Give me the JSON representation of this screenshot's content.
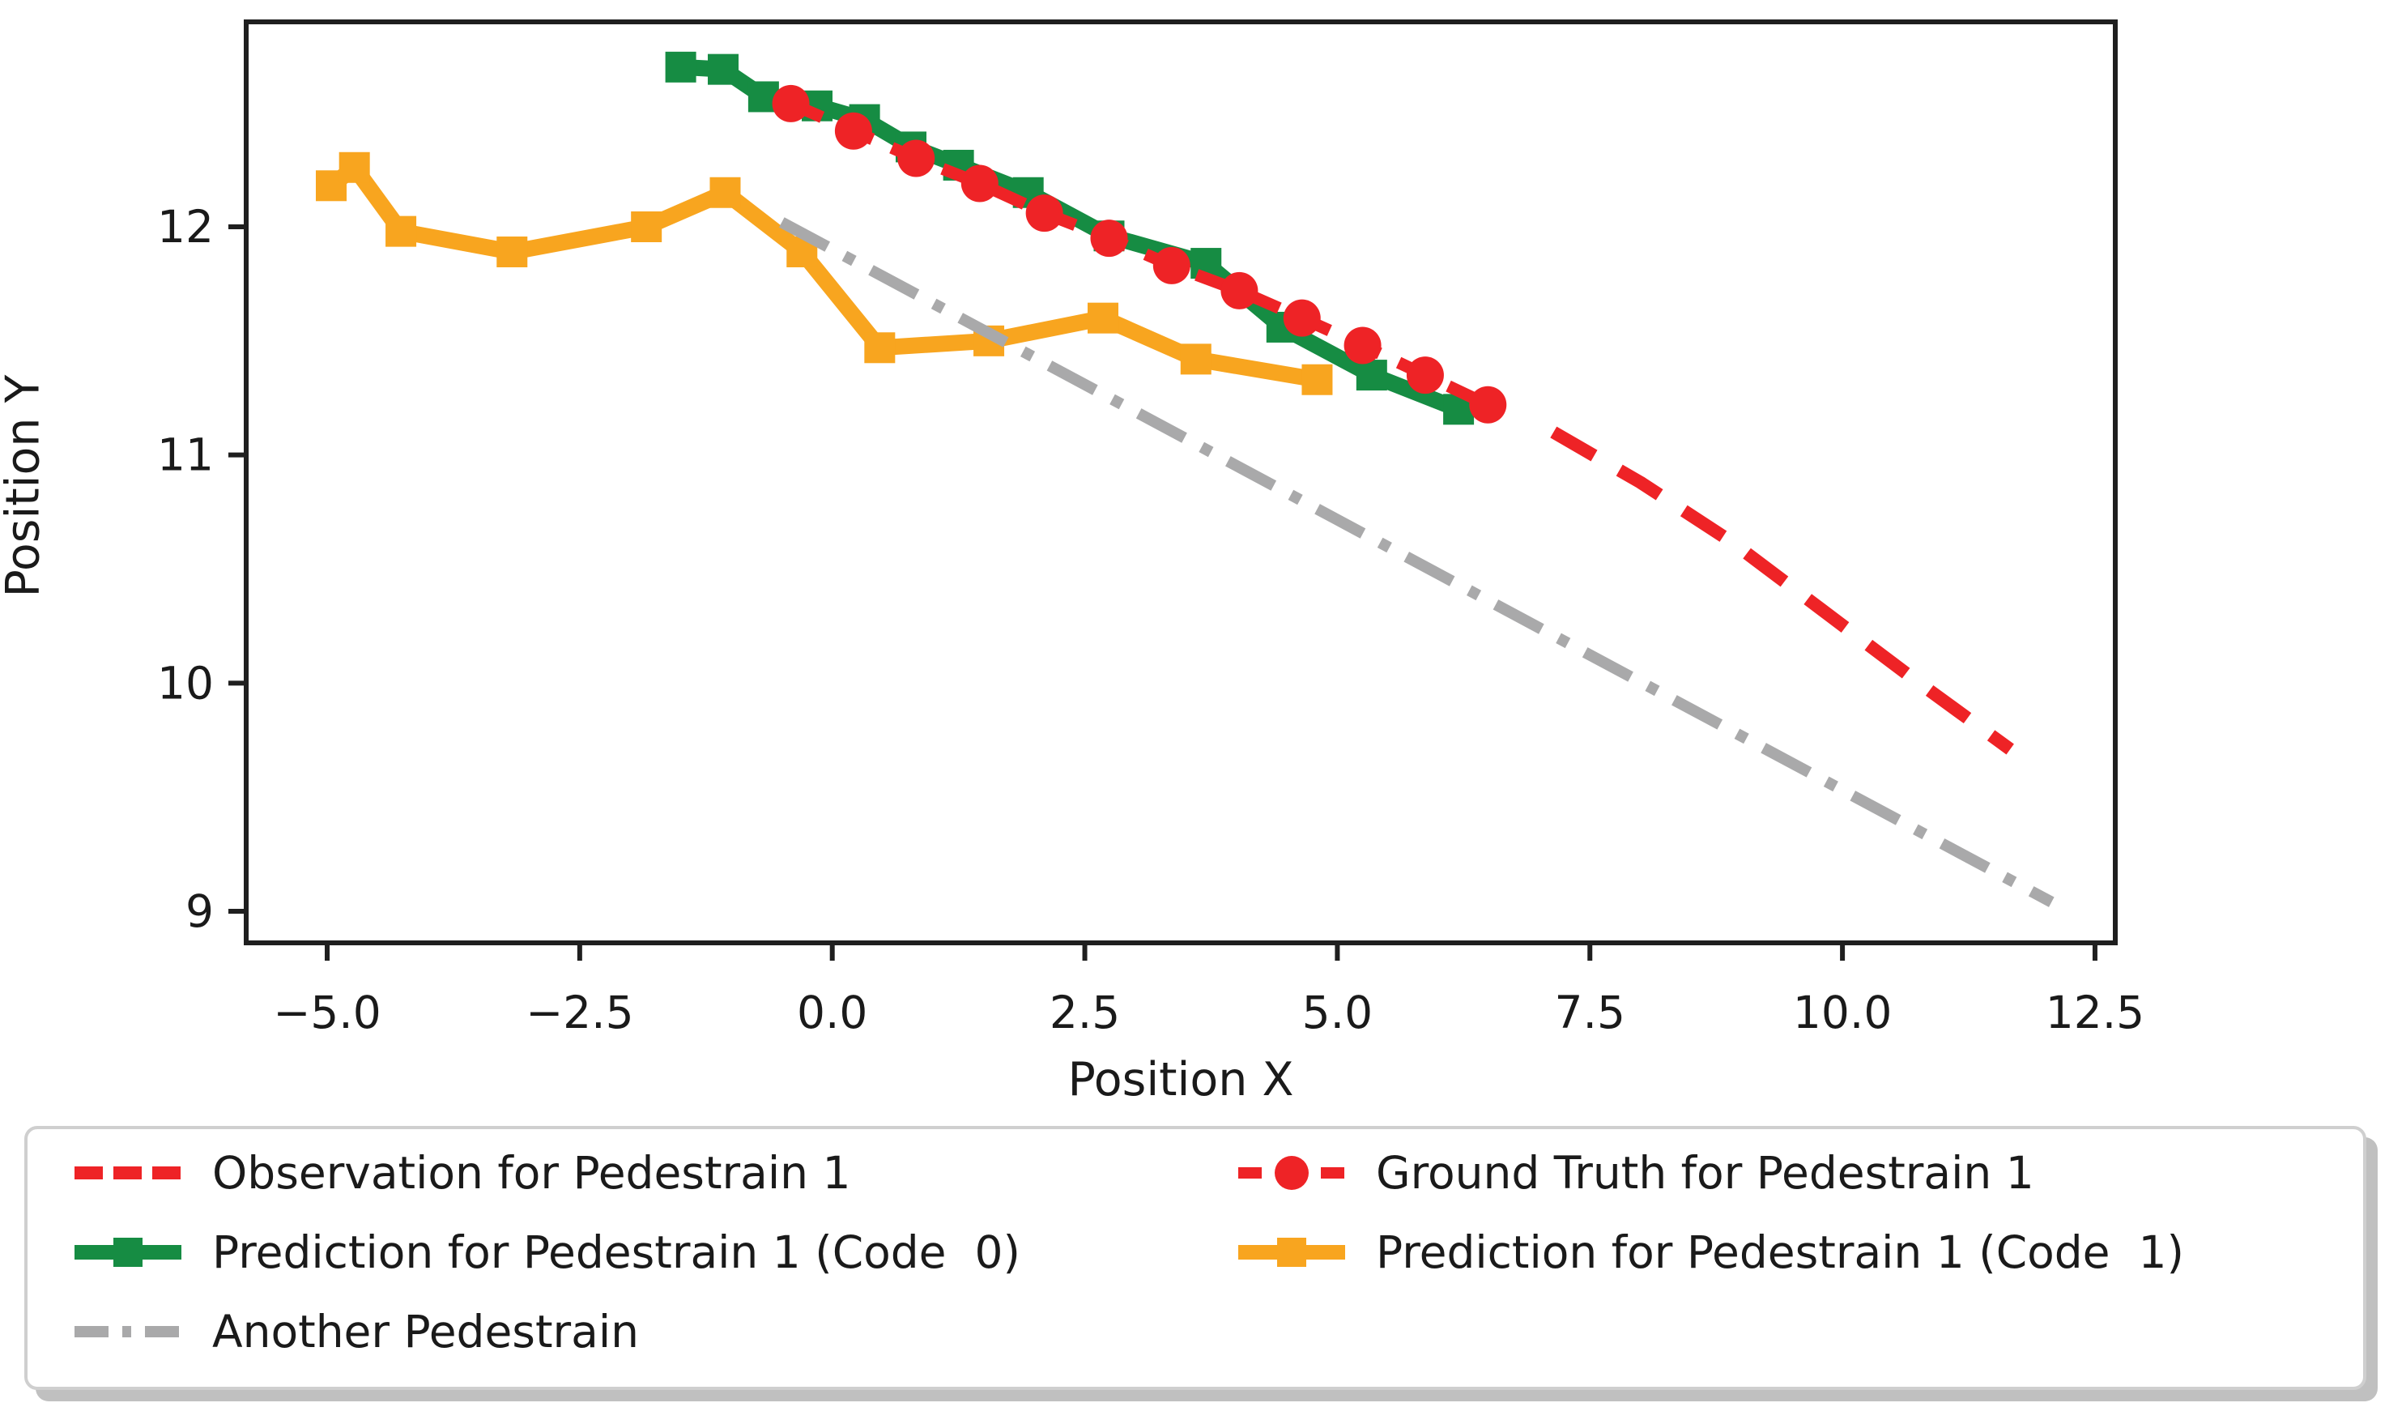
{
  "figure": {
    "background": "#ffffff",
    "axis_color": "#1f1f1f",
    "xlabel": "Position X",
    "ylabel": "Position Y"
  },
  "chart_data": {
    "type": "line",
    "title": "",
    "xlabel": "Position X",
    "ylabel": "Position Y",
    "xlim": [
      -5.8,
      12.75
    ],
    "ylim": [
      8.85,
      12.9
    ],
    "grid": false,
    "legend_position": "below-figure, 2 columns",
    "x_ticks": {
      "values": [
        -5.0,
        -2.5,
        0.0,
        2.5,
        5.0,
        7.5,
        10.0,
        12.5
      ],
      "labels": [
        "−5.0",
        "−2.5",
        "0.0",
        "2.5",
        "5.0",
        "7.5",
        "10.0",
        "12.5"
      ]
    },
    "y_ticks": {
      "values": [
        9,
        10,
        11,
        12
      ],
      "labels": [
        "9",
        "10",
        "11",
        "12"
      ]
    },
    "series": [
      {
        "name": "Observation for Pedestrain 1",
        "color": "#ee2326",
        "style": "dashed",
        "marker": "none",
        "line_width": 16,
        "points": [
          [
            7.14,
            11.1
          ],
          [
            8.0,
            10.88
          ],
          [
            8.9,
            10.62
          ],
          [
            9.8,
            10.32
          ],
          [
            10.7,
            10.02
          ],
          [
            11.66,
            9.71
          ]
        ]
      },
      {
        "name": "Ground Truth for Pedestrain 1",
        "color": "#ee2326",
        "style": "dashed",
        "marker": "circle",
        "line_width": 15,
        "points": [
          [
            -0.41,
            12.54
          ],
          [
            0.21,
            12.42
          ],
          [
            0.83,
            12.3
          ],
          [
            1.46,
            12.19
          ],
          [
            2.1,
            12.06
          ],
          [
            2.74,
            11.95
          ],
          [
            3.36,
            11.83
          ],
          [
            4.03,
            11.72
          ],
          [
            4.65,
            11.6
          ],
          [
            5.25,
            11.48
          ],
          [
            5.87,
            11.35
          ],
          [
            6.49,
            11.22
          ]
        ]
      },
      {
        "name": "Prediction for Pedestrain 1 (Code  0)",
        "color": "#168c43",
        "style": "solid",
        "marker": "square",
        "line_width": 20,
        "points": [
          [
            -1.5,
            12.7
          ],
          [
            -1.08,
            12.69
          ],
          [
            -0.68,
            12.57
          ],
          [
            -0.15,
            12.53
          ],
          [
            0.32,
            12.47
          ],
          [
            0.78,
            12.35
          ],
          [
            1.25,
            12.27
          ],
          [
            1.94,
            12.15
          ],
          [
            2.74,
            11.96
          ],
          [
            3.7,
            11.84
          ],
          [
            4.45,
            11.56
          ],
          [
            5.34,
            11.35
          ],
          [
            6.2,
            11.2
          ]
        ]
      },
      {
        "name": "Prediction for Pedestrain 1 (Code  1)",
        "color": "#f8a51f",
        "style": "solid",
        "marker": "square",
        "line_width": 20,
        "points": [
          [
            -4.96,
            12.18
          ],
          [
            -4.73,
            12.26
          ],
          [
            -4.27,
            11.98
          ],
          [
            -3.17,
            11.89
          ],
          [
            -1.84,
            12.0
          ],
          [
            -1.06,
            12.15
          ],
          [
            -0.3,
            11.89
          ],
          [
            0.47,
            11.47
          ],
          [
            1.55,
            11.5
          ],
          [
            2.68,
            11.6
          ],
          [
            3.6,
            11.42
          ],
          [
            4.8,
            11.33
          ]
        ]
      },
      {
        "name": "Another Pedestrain",
        "color": "#a9a9aa",
        "style": "dashdot",
        "marker": "none",
        "line_width": 14,
        "points": [
          [
            -0.5,
            12.02
          ],
          [
            12.07,
            9.04
          ]
        ]
      }
    ]
  },
  "legend": {
    "entries": [
      {
        "label": "Observation for Pedestrain 1",
        "series": 0,
        "col": 0,
        "row": 0
      },
      {
        "label": "Prediction for Pedestrain 1 (Code  0)",
        "series": 2,
        "col": 0,
        "row": 1
      },
      {
        "label": "Another Pedestrain",
        "series": 4,
        "col": 0,
        "row": 2
      },
      {
        "label": "Ground Truth for Pedestrain 1",
        "series": 1,
        "col": 1,
        "row": 0
      },
      {
        "label": "Prediction for Pedestrain 1 (Code  1)",
        "series": 3,
        "col": 1,
        "row": 1
      }
    ]
  }
}
